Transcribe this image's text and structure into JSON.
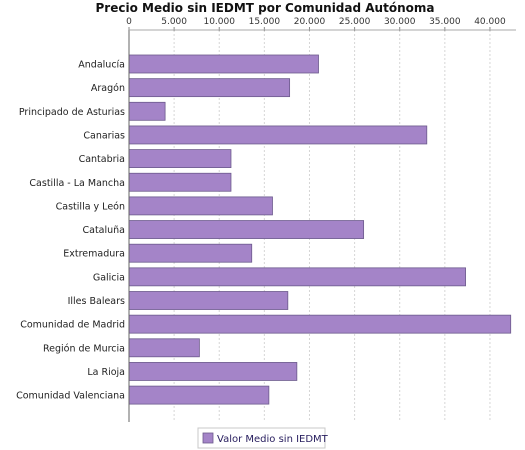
{
  "chart_data": {
    "type": "bar",
    "orientation": "horizontal",
    "title": "Precio Medio sin IEDMT por Comunidad Autónoma",
    "xlabel": "",
    "ylabel": "",
    "xlim": [
      0,
      42000
    ],
    "x_ticks": [
      0,
      5000,
      10000,
      15000,
      20000,
      25000,
      30000,
      35000,
      40000
    ],
    "x_tick_labels": [
      "0",
      "5.000",
      "10.000",
      "15.000",
      "20.000",
      "25.000",
      "30.000",
      "35.000",
      "40.000"
    ],
    "grid": true,
    "legend_position": "bottom",
    "categories": [
      "Andalucía",
      "Aragón",
      "Principado de Asturias",
      "Canarias",
      "Cantabria",
      "Castilla - La Mancha",
      "Castilla y León",
      "Cataluña",
      "Extremadura",
      "Galicia",
      "Illes Balears",
      "Comunidad de Madrid",
      "Región de Murcia",
      "La Rioja",
      "Comunidad Valenciana"
    ],
    "series": [
      {
        "name": "Valor Medio sin IEDMT",
        "color": "#a484c8",
        "values": [
          21000,
          17800,
          4000,
          33000,
          11300,
          11300,
          15900,
          26000,
          13600,
          37300,
          17600,
          42300,
          7800,
          18600,
          15500
        ]
      }
    ]
  }
}
